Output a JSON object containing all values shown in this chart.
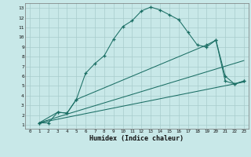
{
  "xlabel": "Humidex (Indice chaleur)",
  "bg_color": "#c8e8e8",
  "grid_color": "#a8cccc",
  "line_color": "#1a6e64",
  "xlim": [
    -0.5,
    23.5
  ],
  "ylim": [
    0.6,
    13.5
  ],
  "xticks": [
    0,
    1,
    2,
    3,
    4,
    5,
    6,
    7,
    8,
    9,
    10,
    11,
    12,
    13,
    14,
    15,
    16,
    17,
    18,
    19,
    20,
    21,
    22,
    23
  ],
  "yticks": [
    1,
    2,
    3,
    4,
    5,
    6,
    7,
    8,
    9,
    10,
    11,
    12,
    13
  ],
  "line1_x": [
    1,
    2,
    3,
    4,
    5,
    6,
    7,
    8,
    9,
    10,
    11,
    12,
    13,
    14,
    15,
    16,
    17,
    18,
    19,
    20,
    21,
    22,
    23
  ],
  "line1_y": [
    1.2,
    1.2,
    2.3,
    2.2,
    3.6,
    6.3,
    7.3,
    8.1,
    9.8,
    11.1,
    11.7,
    12.7,
    13.1,
    12.8,
    12.3,
    11.8,
    10.5,
    9.2,
    9.0,
    9.7,
    5.5,
    5.2,
    5.5
  ],
  "line2_x": [
    1,
    3,
    4,
    5,
    19,
    20,
    21,
    22,
    23
  ],
  "line2_y": [
    1.2,
    2.3,
    2.2,
    3.6,
    9.2,
    9.7,
    6.0,
    5.2,
    5.5
  ],
  "line3_x": [
    1,
    4,
    23
  ],
  "line3_y": [
    1.2,
    2.1,
    7.6
  ],
  "line4_x": [
    1,
    23
  ],
  "line4_y": [
    1.2,
    5.4
  ]
}
